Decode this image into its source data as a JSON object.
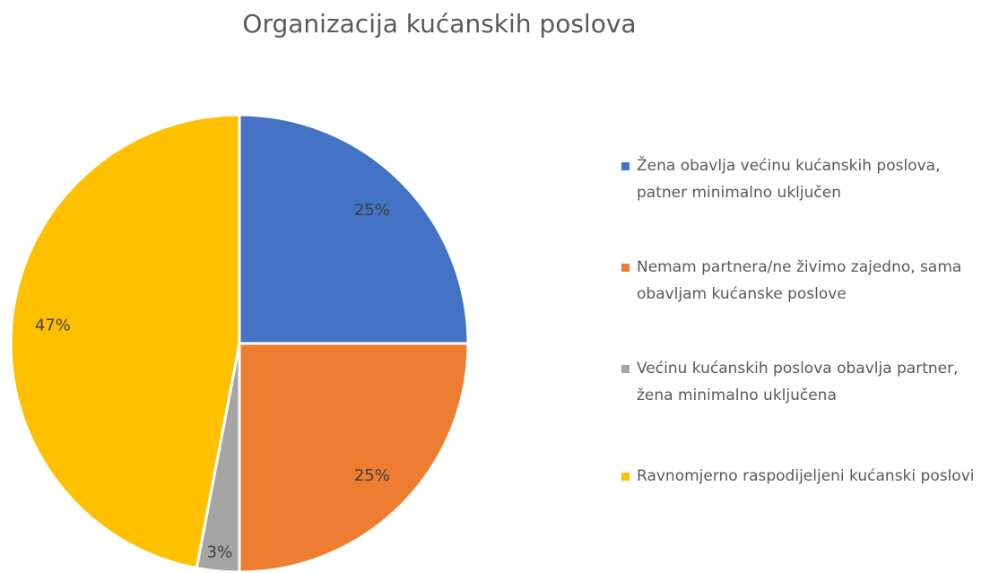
{
  "chart_data": {
    "type": "pie",
    "title": "Organizacija kućanskih poslova",
    "categories": [
      "Žena obavlja većinu kućanskih poslova, patner minimalno uključen",
      "Nemam partnera/ne živimo zajedno, sama obavljam kućanske poslove",
      "Većinu kućanskih poslova obavlja partner, žena minimalno uključena",
      "Ravnomjerno raspodijeljeni kućanski poslovi"
    ],
    "values": [
      25,
      25,
      3,
      47
    ],
    "value_labels": [
      "25%",
      "25%",
      "3%",
      "47%"
    ],
    "colors": [
      "#4472c4",
      "#ed7d31",
      "#a5a5a5",
      "#ffc000"
    ],
    "legend": "right"
  }
}
